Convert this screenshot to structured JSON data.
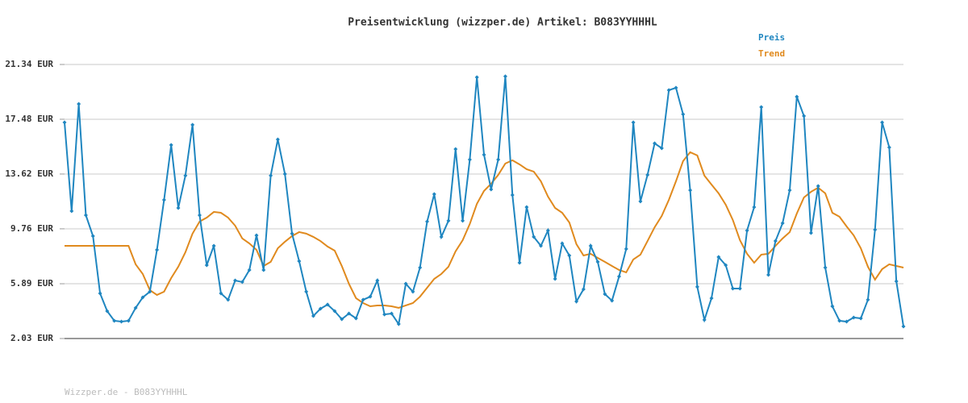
{
  "chart_data": {
    "type": "line",
    "title": "Preisentwicklung (wizzper.de) Artikel: B083YYHHHL",
    "footer": "Wizzper.de - B083YYHHHL",
    "ylim": [
      2.03,
      21.34
    ],
    "yticks": [
      {
        "value": 2.03,
        "label": "2.03 EUR"
      },
      {
        "value": 5.89,
        "label": "5.89 EUR"
      },
      {
        "value": 9.76,
        "label": "9.76 EUR"
      },
      {
        "value": 13.62,
        "label": "13.62 EUR"
      },
      {
        "value": 17.48,
        "label": "17.48 EUR"
      },
      {
        "value": 21.34,
        "label": "21.34 EUR"
      }
    ],
    "grid": true,
    "legend": "top-right",
    "series": [
      {
        "name": "Preis",
        "color": "#1f86c0",
        "markers": true,
        "values": [
          17.26,
          11.01,
          18.56,
          10.72,
          9.25,
          5.21,
          3.96,
          3.28,
          3.22,
          3.28,
          4.19,
          4.93,
          5.33,
          8.28,
          11.8,
          15.67,
          11.23,
          13.51,
          17.09,
          10.72,
          7.2,
          8.56,
          5.21,
          4.76,
          6.12,
          6.01,
          6.86,
          9.3,
          6.86,
          13.51,
          16.06,
          13.62,
          9.42,
          7.48,
          5.33,
          3.62,
          4.13,
          4.42,
          3.96,
          3.39,
          3.79,
          3.45,
          4.76,
          4.98,
          6.12,
          3.73,
          3.79,
          3.05,
          5.89,
          5.33,
          7.03,
          10.27,
          12.2,
          9.19,
          10.33,
          15.38,
          10.33,
          14.64,
          20.44,
          14.98,
          12.54,
          14.64,
          20.5,
          12.14,
          7.37,
          11.29,
          9.19,
          8.56,
          9.64,
          6.23,
          8.73,
          7.88,
          4.64,
          5.5,
          8.56,
          7.43,
          5.16,
          4.7,
          6.4,
          8.34,
          17.26,
          11.69,
          13.56,
          15.78,
          15.44,
          19.53,
          19.7,
          17.83,
          12.48,
          5.67,
          3.34,
          4.87,
          7.77,
          7.2,
          5.55,
          5.55,
          9.64,
          11.29,
          18.34,
          6.52,
          8.9,
          10.16,
          12.48,
          19.07,
          17.71,
          9.47,
          12.77,
          7.03,
          4.3,
          3.28,
          3.22,
          3.51,
          3.45,
          4.76,
          9.7,
          17.26,
          15.5,
          6.06,
          2.88
        ]
      },
      {
        "name": "Trend",
        "color": "#e08a1e",
        "markers": false,
        "values": [
          8.56,
          8.56,
          8.56,
          8.56,
          8.56,
          8.56,
          8.56,
          8.56,
          8.56,
          8.56,
          7.26,
          6.58,
          5.44,
          5.1,
          5.33,
          6.29,
          7.09,
          8.11,
          9.42,
          10.27,
          10.55,
          10.95,
          10.89,
          10.55,
          9.98,
          9.08,
          8.73,
          8.28,
          7.14,
          7.43,
          8.39,
          8.85,
          9.25,
          9.53,
          9.42,
          9.19,
          8.9,
          8.51,
          8.22,
          7.14,
          5.89,
          4.87,
          4.53,
          4.3,
          4.36,
          4.36,
          4.3,
          4.19,
          4.36,
          4.53,
          4.98,
          5.61,
          6.23,
          6.58,
          7.09,
          8.17,
          8.96,
          10.1,
          11.52,
          12.43,
          12.94,
          13.56,
          14.36,
          14.59,
          14.3,
          13.96,
          13.79,
          13.11,
          12.03,
          11.23,
          10.89,
          10.21,
          8.68,
          7.88,
          8.0,
          7.71,
          7.43,
          7.14,
          6.86,
          6.69,
          7.6,
          7.94,
          8.9,
          9.87,
          10.67,
          11.8,
          13.11,
          14.53,
          15.16,
          14.93,
          13.51,
          12.88,
          12.26,
          11.46,
          10.38,
          8.96,
          8.0,
          7.37,
          7.94,
          8.0,
          8.56,
          9.08,
          9.53,
          10.84,
          11.97,
          12.37,
          12.66,
          12.26,
          10.89,
          10.61,
          9.93,
          9.3,
          8.39,
          7.09,
          6.18,
          6.92,
          7.26,
          7.14,
          7.03
        ]
      }
    ]
  }
}
